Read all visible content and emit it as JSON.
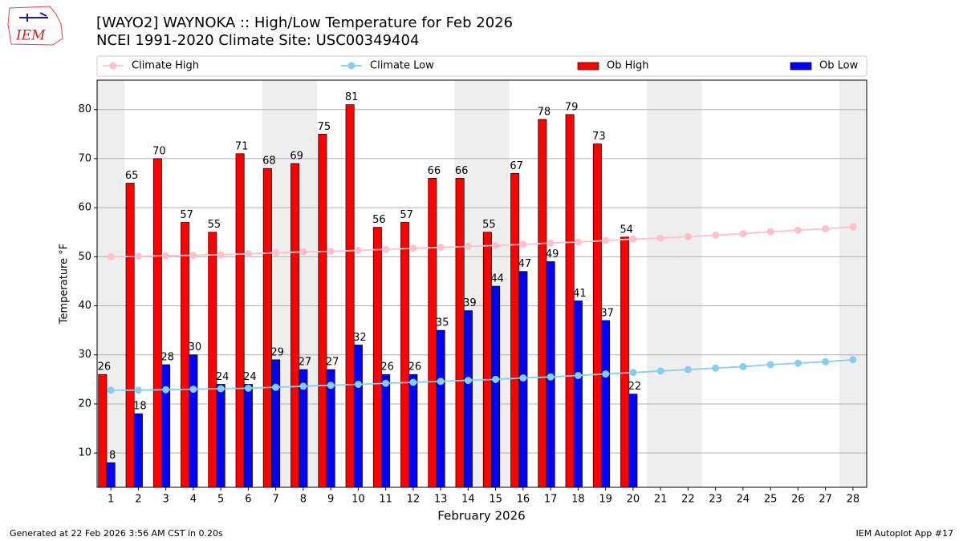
{
  "logo_text": "IEM",
  "footer_left": "Generated at 22 Feb 2026 3:56 AM CST in 0.20s",
  "footer_right": "IEM Autoplot App #17",
  "chart_data": {
    "type": "bar",
    "title": "[WAYO2] WAYNOKA :: High/Low Temperature for Feb 2026",
    "subtitle": "NCEI 1991-2020 Climate Site: USC00349404",
    "xlabel": "February 2026",
    "ylabel": "Temperature °F",
    "x": [
      1,
      2,
      3,
      4,
      5,
      6,
      7,
      8,
      9,
      10,
      11,
      12,
      13,
      14,
      15,
      16,
      17,
      18,
      19,
      20,
      21,
      22,
      23,
      24,
      25,
      26,
      27,
      28
    ],
    "xlim": [
      0.5,
      28.5
    ],
    "xticks": [
      1,
      2,
      3,
      4,
      5,
      6,
      7,
      8,
      9,
      10,
      11,
      12,
      13,
      14,
      15,
      16,
      17,
      18,
      19,
      20,
      21,
      22,
      23,
      24,
      25,
      26,
      27,
      28
    ],
    "ylim": [
      3,
      86
    ],
    "yticks": [
      10,
      20,
      30,
      40,
      50,
      60,
      70,
      80
    ],
    "grid": true,
    "legend": "top",
    "weekend_shading": [
      1,
      7,
      8,
      14,
      15,
      21,
      22,
      28
    ],
    "series": [
      {
        "name": "Climate High",
        "type": "line",
        "color": "#ffc0cb",
        "values": [
          50.0,
          50.1,
          50.2,
          50.3,
          50.4,
          50.6,
          50.8,
          51.0,
          51.1,
          51.3,
          51.5,
          51.7,
          51.9,
          52.1,
          52.3,
          52.5,
          52.8,
          53.0,
          53.3,
          53.6,
          53.8,
          54.1,
          54.4,
          54.7,
          55.1,
          55.4,
          55.7,
          56.1
        ]
      },
      {
        "name": "Climate Low",
        "type": "line",
        "color": "#87ceeb",
        "values": [
          22.8,
          22.8,
          22.9,
          23.0,
          23.1,
          23.2,
          23.4,
          23.6,
          23.8,
          24.0,
          24.2,
          24.4,
          24.6,
          24.8,
          25.0,
          25.3,
          25.5,
          25.8,
          26.1,
          26.4,
          26.7,
          27.0,
          27.3,
          27.6,
          28.0,
          28.3,
          28.6,
          29.0
        ]
      },
      {
        "name": "Ob High",
        "type": "bar",
        "color": "#ff0000",
        "values": [
          26,
          65,
          70,
          57,
          55,
          71,
          68,
          69,
          75,
          81,
          56,
          57,
          66,
          66,
          55,
          67,
          78,
          79,
          73,
          54,
          null,
          null,
          null,
          null,
          null,
          null,
          null,
          null
        ]
      },
      {
        "name": "Ob Low",
        "type": "bar",
        "color": "#0000ff",
        "values": [
          8,
          18,
          28,
          30,
          24,
          24,
          29,
          27,
          27,
          32,
          26,
          26,
          35,
          39,
          44,
          47,
          49,
          41,
          37,
          22,
          null,
          null,
          null,
          null,
          null,
          null,
          null,
          null
        ]
      }
    ]
  }
}
